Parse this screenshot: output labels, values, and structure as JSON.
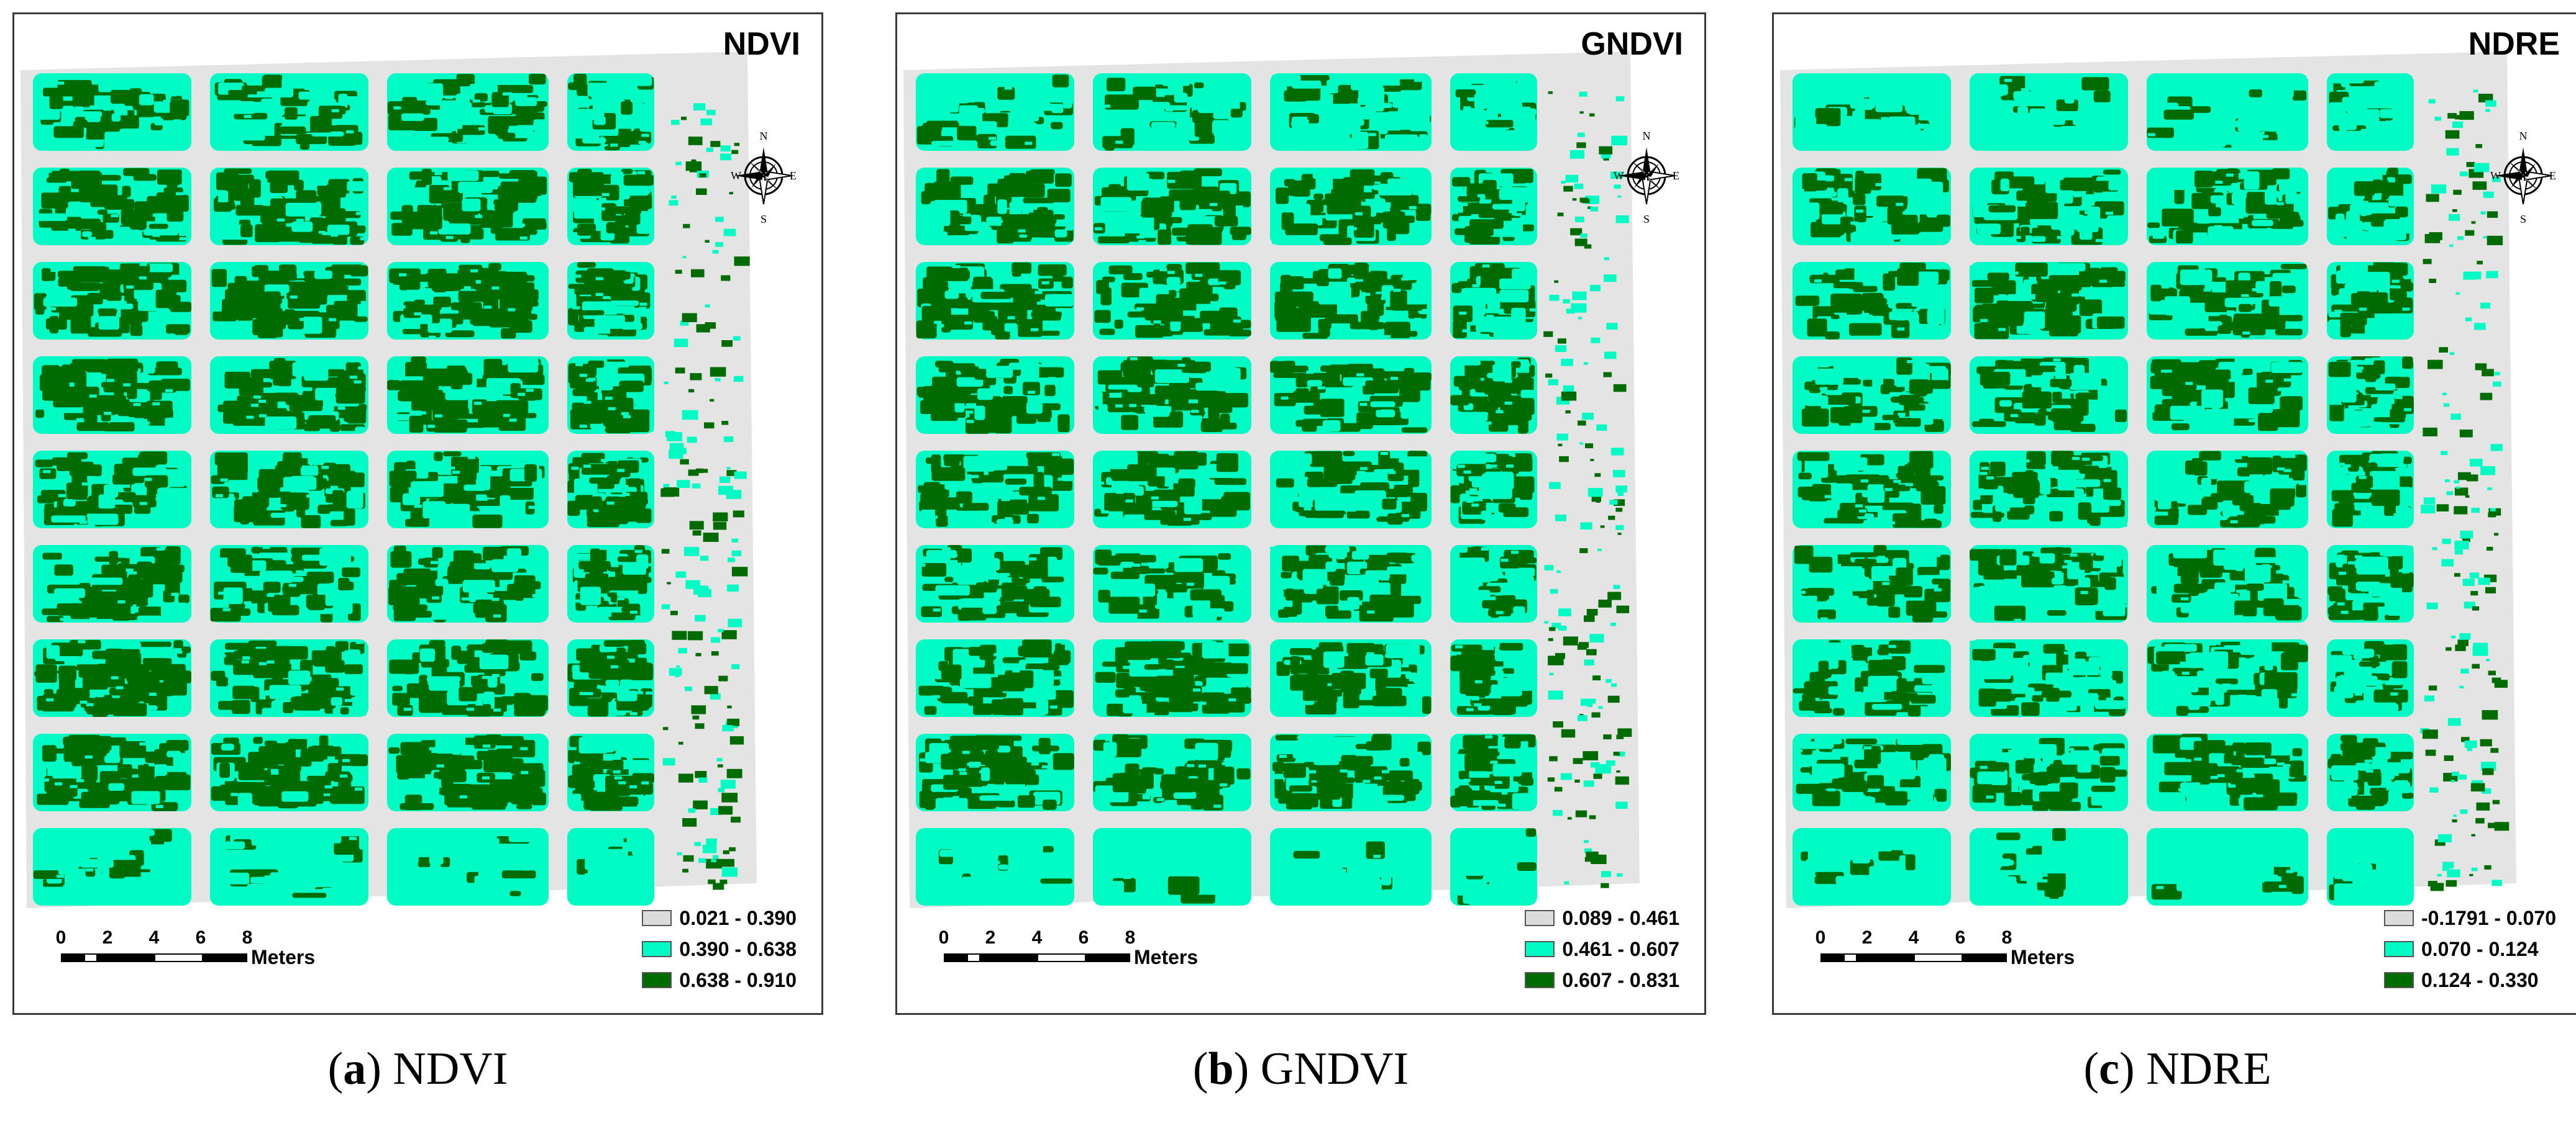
{
  "colors": {
    "low": "#dcdcdc",
    "mid": "#00fcc4",
    "high": "#006b00",
    "ground": "#e4e4e4"
  },
  "panels": [
    {
      "title": "NDVI",
      "caption_letter": "a",
      "caption_text": "NDVI",
      "legend": [
        {
          "label": "0.021 - 0.390",
          "color": "#dcdcdc"
        },
        {
          "label": "0.390 - 0.638",
          "color": "#00fcc4"
        },
        {
          "label": "0.638 - 0.910",
          "color": "#006b00"
        }
      ],
      "scale": {
        "ticks": [
          "0",
          "2",
          "4",
          "6",
          "8"
        ],
        "units": "Meters"
      },
      "compass": {
        "n": "N",
        "s": "S",
        "e": "E",
        "w": "W"
      }
    },
    {
      "title": "GNDVI",
      "caption_letter": "b",
      "caption_text": "GNDVI",
      "legend": [
        {
          "label": "0.089 - 0.461",
          "color": "#dcdcdc"
        },
        {
          "label": "0.461 - 0.607",
          "color": "#00fcc4"
        },
        {
          "label": "0.607 - 0.831",
          "color": "#006b00"
        }
      ],
      "scale": {
        "ticks": [
          "0",
          "2",
          "4",
          "6",
          "8"
        ],
        "units": "Meters"
      },
      "compass": {
        "n": "N",
        "s": "S",
        "e": "E",
        "w": "W"
      }
    },
    {
      "title": "NDRE",
      "caption_letter": "c",
      "caption_text": "NDRE",
      "legend": [
        {
          "label": "-0.1791 - 0.070",
          "color": "#dcdcdc"
        },
        {
          "label": "0.070 - 0.124",
          "color": "#00fcc4"
        },
        {
          "label": "0.124 - 0.330",
          "color": "#006b00"
        }
      ],
      "scale": {
        "ticks": [
          "0",
          "2",
          "4",
          "6",
          "8"
        ],
        "units": "Meters"
      },
      "compass": {
        "n": "N",
        "s": "S",
        "e": "E",
        "w": "W"
      }
    }
  ]
}
